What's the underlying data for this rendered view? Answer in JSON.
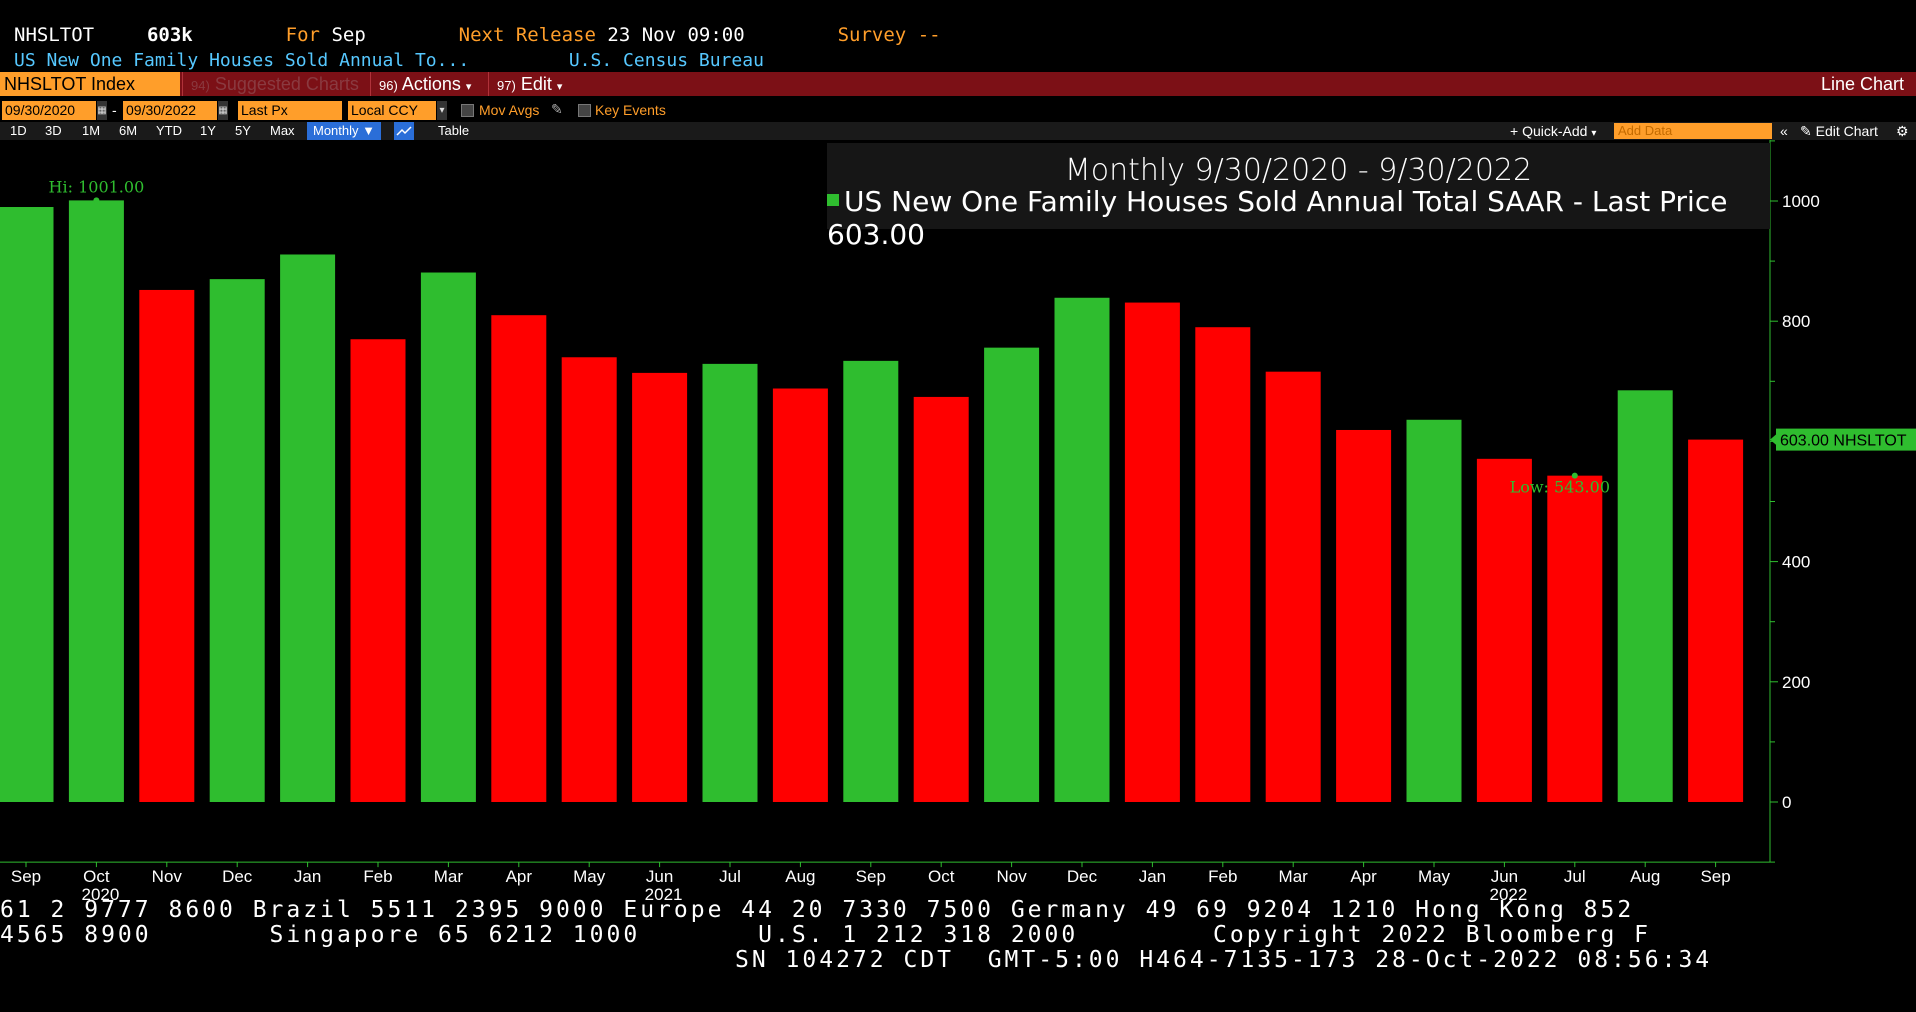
{
  "header": {
    "ticker": "NHSLTOT",
    "value": "603k",
    "for_label": "For",
    "for_value": "Sep",
    "next_release_label": "Next Release",
    "next_release_value": "23 Nov 09:00",
    "survey_label": "Survey",
    "survey_value": "--",
    "description": "US New One Family Houses Sold Annual To...",
    "source": "U.S. Census Bureau"
  },
  "menubar": {
    "index": "NHSLTOT Index",
    "suggested_num": "94)",
    "suggested": "Suggested Charts",
    "actions_num": "96)",
    "actions": "Actions",
    "edit_num": "97)",
    "edit": "Edit",
    "chart_type": "Line Chart"
  },
  "toolbar": {
    "start_date": "09/30/2020",
    "date_sep": "-",
    "end_date": "09/30/2022",
    "field": "Last Px",
    "currency": "Local CCY",
    "mov_avgs": "Mov Avgs",
    "key_events": "Key Events",
    "periods": [
      "1D",
      "3D",
      "1M",
      "6M",
      "YTD",
      "1Y",
      "5Y",
      "Max"
    ],
    "frequency": "Monthly",
    "table": "Table",
    "quick_add": "Quick-Add",
    "add_data_placeholder": "Add Data",
    "edit_chart": "Edit Chart"
  },
  "legend": {
    "title": "Monthly 9/30/2020 - 9/30/2022",
    "entry": "US New One Family Houses Sold Annual Total SAAR - Last Price",
    "last_price": "603.00"
  },
  "chart_data": {
    "type": "bar",
    "categories": [
      "Sep",
      "Oct",
      "Nov",
      "Dec",
      "Jan",
      "Feb",
      "Mar",
      "Apr",
      "May",
      "Jun",
      "Jul",
      "Aug",
      "Sep",
      "Oct",
      "Nov",
      "Dec",
      "Jan",
      "Feb",
      "Mar",
      "Apr",
      "May",
      "Jun",
      "Jul",
      "Aug",
      "Sep"
    ],
    "year_labels": [
      {
        "label": "2020",
        "index": 1
      },
      {
        "label": "2021",
        "index": 9
      },
      {
        "label": "2022",
        "index": 21
      }
    ],
    "values": [
      990,
      1001,
      852,
      870,
      911,
      770,
      881,
      810,
      740,
      714,
      729,
      688,
      734,
      674,
      756,
      839,
      831,
      790,
      716,
      619,
      636,
      571,
      543,
      685,
      603
    ],
    "colors": [
      "green",
      "green",
      "red",
      "green",
      "green",
      "red",
      "green",
      "red",
      "red",
      "red",
      "green",
      "red",
      "green",
      "red",
      "green",
      "green",
      "red",
      "red",
      "red",
      "red",
      "green",
      "red",
      "red",
      "green",
      "red"
    ],
    "color_up": "#2fbd2f",
    "color_down": "#ff0000",
    "ylim": [
      -100,
      1100
    ],
    "yticks": [
      0,
      200,
      400,
      600,
      800,
      1000
    ],
    "hi_label": "Hi: 1001.00",
    "low_label": "Low: 543.00",
    "last_tag": "603.00 NHSLTOT"
  },
  "ticker_lines": [
    "61 2 9777 8600 Brazil 5511 2395 9000 Europe 44 20 7330 7500 Germany 49 69 9204 1210 Hong Kong 852",
    "4565 8900       Singapore 65 6212 1000       U.S. 1 212 318 2000        Copyright 2022 Bloomberg F",
    "SN 104272 CDT  GMT-5:00 H464-7135-173 28-Oct-2022 08:56:34"
  ]
}
